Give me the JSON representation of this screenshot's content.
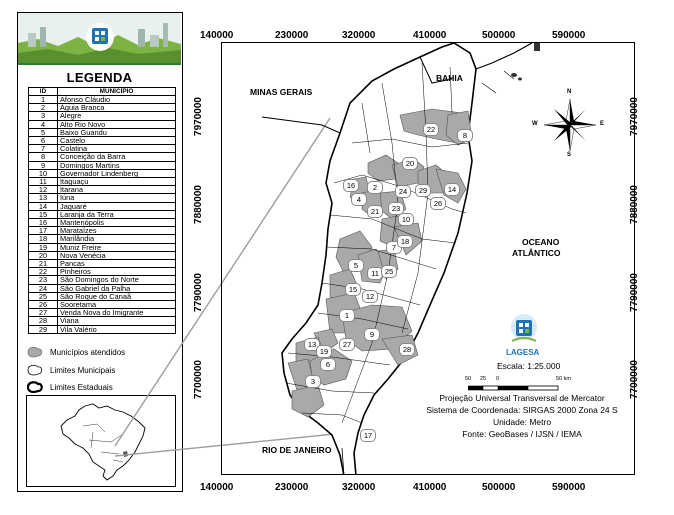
{
  "legend": {
    "title": "LEGENDA",
    "table_headers": {
      "id": "ID",
      "name": "MUNICÍPIO"
    },
    "municipalities": [
      {
        "id": "1",
        "name": "Afonso Cláudio"
      },
      {
        "id": "2",
        "name": "Águia Branca"
      },
      {
        "id": "3",
        "name": "Alegre"
      },
      {
        "id": "4",
        "name": "Alto Rio Novo"
      },
      {
        "id": "5",
        "name": "Baixo Guandu"
      },
      {
        "id": "6",
        "name": "Castelo"
      },
      {
        "id": "7",
        "name": "Colatina"
      },
      {
        "id": "8",
        "name": "Conceição da Barra"
      },
      {
        "id": "9",
        "name": "Domingos Martins"
      },
      {
        "id": "10",
        "name": "Governador Lindenberg"
      },
      {
        "id": "11",
        "name": "Itaguaçu"
      },
      {
        "id": "12",
        "name": "Itarana"
      },
      {
        "id": "13",
        "name": "Iúna"
      },
      {
        "id": "14",
        "name": "Jaguaré"
      },
      {
        "id": "15",
        "name": "Laranja da Terra"
      },
      {
        "id": "16",
        "name": "Mantenópolis"
      },
      {
        "id": "17",
        "name": "Marataízes"
      },
      {
        "id": "18",
        "name": "Marilândia"
      },
      {
        "id": "19",
        "name": "Muniz Freire"
      },
      {
        "id": "20",
        "name": "Nova Venécia"
      },
      {
        "id": "21",
        "name": "Pancas"
      },
      {
        "id": "22",
        "name": "Pinheiros"
      },
      {
        "id": "23",
        "name": "São Domingos do Norte"
      },
      {
        "id": "24",
        "name": "São Gabriel da Palha"
      },
      {
        "id": "25",
        "name": "São Roque do Canaã"
      },
      {
        "id": "26",
        "name": "Sooretama"
      },
      {
        "id": "27",
        "name": "Venda Nova do Imigrante"
      },
      {
        "id": "28",
        "name": "Viana"
      },
      {
        "id": "29",
        "name": "Vila Valério"
      }
    ],
    "symbols": {
      "served": "Municípios atendidos",
      "municipal_limits": "Limites Municipais",
      "state_limits": "Limites Estaduais"
    }
  },
  "axes": {
    "x_ticks": [
      "140000",
      "230000",
      "320000",
      "410000",
      "500000",
      "590000"
    ],
    "y_ticks": [
      "7970000",
      "7880000",
      "7790000",
      "7700000"
    ]
  },
  "places": {
    "minas_gerais": "MINAS GERAIS",
    "bahia": "BAHIA",
    "ocean_line1": "OCEANO",
    "ocean_line2": "ATLÂNTICO",
    "rio_de_janeiro": "RIO DE JANEIRO"
  },
  "compass": {
    "n": "N",
    "s": "S",
    "e": "E",
    "w": "W"
  },
  "logo": {
    "name": "LAGESA"
  },
  "scale": {
    "text": "Escala: 1:25.000",
    "labels": [
      "50",
      "25",
      "0",
      "50 km"
    ]
  },
  "projection_info": [
    "Projeção Universal Transversal de Mercator",
    "Sistema de Coordenada: SIRGAS 2000 Zona 24 S",
    "Unidade: Metro",
    "Fonte: GeoBases / IJSN / IEMA"
  ],
  "colors": {
    "served_fill": "#a9a9a9",
    "frame": "#000000",
    "banner_sky": "#d8e8e2",
    "banner_green": "#7cb342",
    "logo_blue": "#1e73b8"
  }
}
